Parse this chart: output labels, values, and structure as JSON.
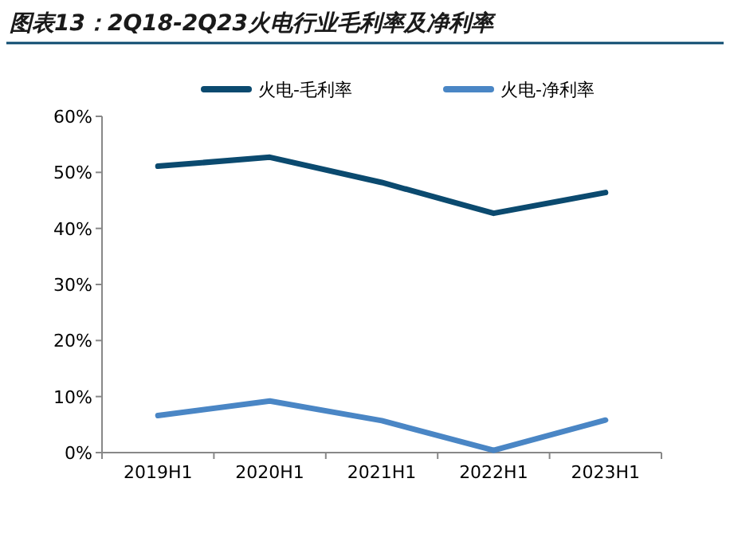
{
  "chart_data": {
    "type": "line",
    "title": "图表13：2Q18-2Q23火电行业毛利率及净利率",
    "categories": [
      "2019H1",
      "2020H1",
      "2021H1",
      "2022H1",
      "2023H1"
    ],
    "series": [
      {
        "name": "火电-毛利率",
        "color": "#0b4a6f",
        "values": [
          51.1,
          52.7,
          48.2,
          42.7,
          46.4
        ]
      },
      {
        "name": "火电-净利率",
        "color": "#4a86c5",
        "values": [
          6.6,
          9.2,
          5.7,
          0.4,
          5.8
        ]
      }
    ],
    "ylim": [
      0,
      60
    ],
    "yticks": [
      {
        "value": 0,
        "label": "0%"
      },
      {
        "value": 10,
        "label": "10%"
      },
      {
        "value": 20,
        "label": "20%"
      },
      {
        "value": 30,
        "label": "30%"
      },
      {
        "value": 40,
        "label": "40%"
      },
      {
        "value": 50,
        "label": "50%"
      },
      {
        "value": 60,
        "label": "60%"
      }
    ],
    "grid": false,
    "legend": "top",
    "marker": "none",
    "line_style": "solid"
  }
}
